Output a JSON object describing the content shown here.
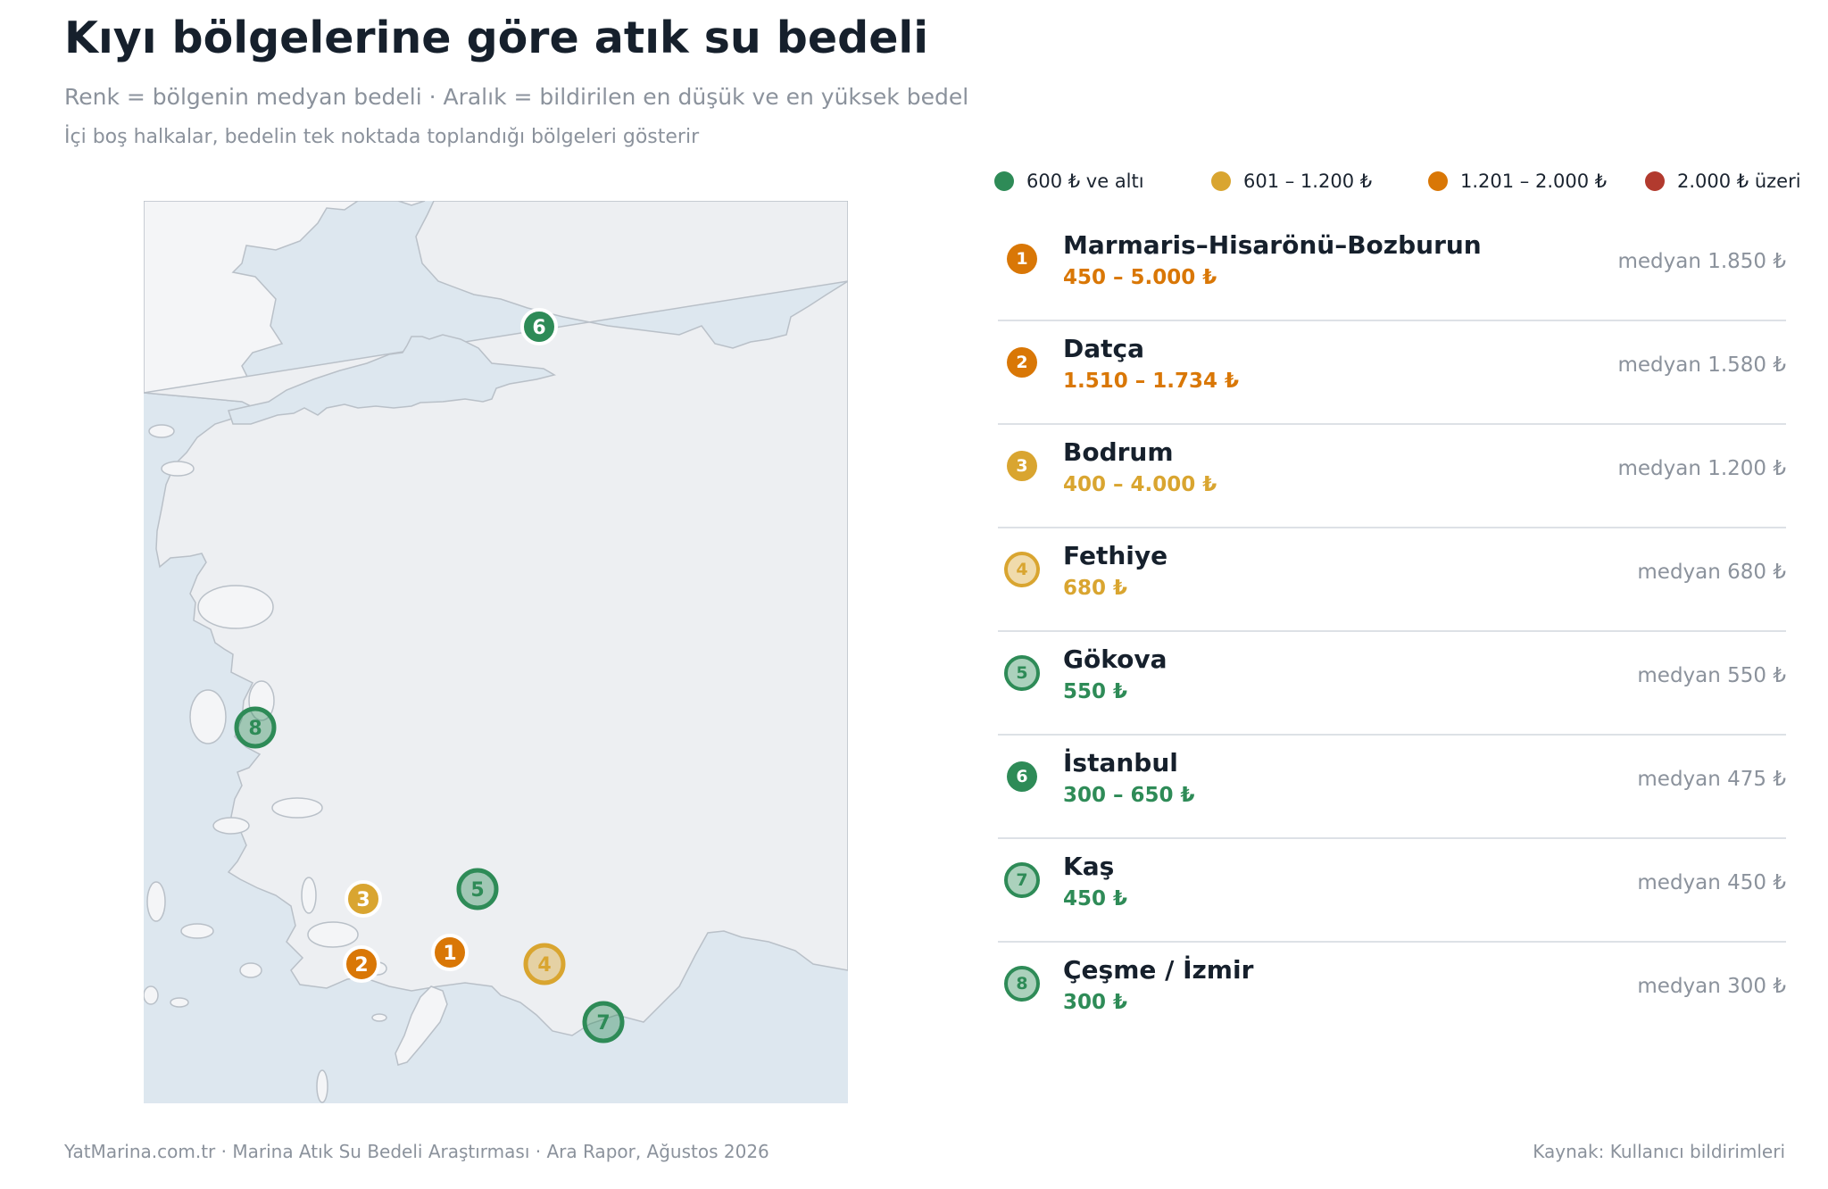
{
  "header": {
    "title": "Kıyı bölgelerine göre atık su bedeli",
    "subtitle": "Renk = bölgenin medyan bedeli · Aralık = bildirilen en düşük ve en yüksek bedel",
    "note": "İçi boş halkalar, bedelin tek noktada toplandığı bölgeleri gösterir"
  },
  "legend": [
    {
      "label": "600 ₺ ve altı",
      "color": "#2e8b57"
    },
    {
      "label": "601 – 1.200 ₺",
      "color": "#d9a530"
    },
    {
      "label": "1.201 – 2.000 ₺",
      "color": "#d97706"
    },
    {
      "label": "2.000 ₺ üzeri",
      "color": "#b23a2e"
    }
  ],
  "regions": [
    {
      "num": "1",
      "name": "Marmaris–Hisarönü–Bozburun",
      "range": "450 – 5.000 ₺",
      "median": "medyan 1.850 ₺",
      "color": "#d97706",
      "hollow": false
    },
    {
      "num": "2",
      "name": "Datça",
      "range": "1.510 – 1.734 ₺",
      "median": "medyan 1.580 ₺",
      "color": "#d97706",
      "hollow": false
    },
    {
      "num": "3",
      "name": "Bodrum",
      "range": "400 – 4.000 ₺",
      "median": "medyan 1.200 ₺",
      "color": "#d9a530",
      "hollow": false
    },
    {
      "num": "4",
      "name": "Fethiye",
      "range": "680 ₺",
      "median": "medyan 680 ₺",
      "color": "#d9a530",
      "hollow": true
    },
    {
      "num": "5",
      "name": "Gökova",
      "range": "550 ₺",
      "median": "medyan 550 ₺",
      "color": "#2e8b57",
      "hollow": true
    },
    {
      "num": "6",
      "name": "İstanbul",
      "range": "300 – 650 ₺",
      "median": "medyan 475 ₺",
      "color": "#2e8b57",
      "hollow": false
    },
    {
      "num": "7",
      "name": "Kaş",
      "range": "450 ₺",
      "median": "medyan 450 ₺",
      "color": "#2e8b57",
      "hollow": true
    },
    {
      "num": "8",
      "name": "Çeşme / İzmir",
      "range": "300 ₺",
      "median": "medyan 300 ₺",
      "color": "#2e8b57",
      "hollow": true
    }
  ],
  "footer": {
    "left": "YatMarina.com.tr  ·  Marina Atık Su Bedeli Araştırması  ·  Ara Rapor, Ağustos 2026",
    "right": "Kaynak: Kullanıcı bildirimleri"
  }
}
